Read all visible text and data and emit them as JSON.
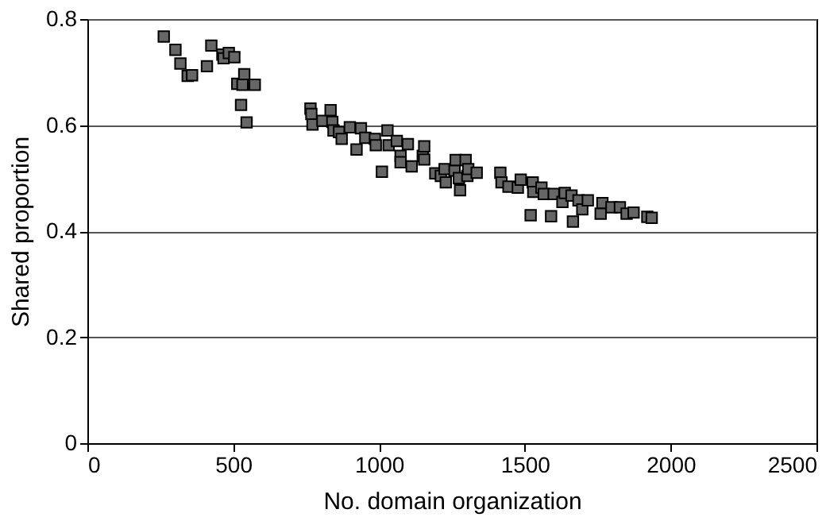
{
  "chart_data": {
    "type": "scatter",
    "xlabel": "No. domain organization",
    "ylabel": "Shared proportion",
    "xlim": [
      0,
      2500
    ],
    "xticks": [
      0,
      500,
      1000,
      1500,
      2000,
      2500
    ],
    "ylim": [
      0,
      0.8
    ],
    "yticks": [
      0,
      0.2,
      0.4,
      0.6,
      0.8
    ],
    "grid": "y",
    "marker": "square",
    "legend": false,
    "series": [
      {
        "color": "#666666",
        "x": [
          262,
          302,
          319,
          344,
          359,
          410,
          425,
          463,
          467,
          485,
          504,
          514,
          538,
          532,
          574,
          527,
          546,
          765,
          768,
          772,
          806,
          834,
          840,
          844,
          863,
          872,
          900,
          923,
          938,
          953,
          986,
          989,
          1010,
          1029,
          1033,
          1061,
          1074,
          1074,
          1099,
          1112,
          1150,
          1155,
          1155,
          1193,
          1212,
          1225,
          1229,
          1259,
          1263,
          1274,
          1278,
          1297,
          1303,
          1306,
          1335,
          1416,
          1420,
          1444,
          1476,
          1486,
          1520,
          1527,
          1529,
          1557,
          1565,
          1590,
          1599,
          1629,
          1637,
          1660,
          1665,
          1684,
          1697,
          1716,
          1760,
          1766,
          1797,
          1826,
          1849,
          1873,
          1920,
          1935
        ],
        "values": [
          0.767,
          0.742,
          0.716,
          0.693,
          0.694,
          0.711,
          0.75,
          0.733,
          0.726,
          0.736,
          0.728,
          0.678,
          0.696,
          0.676,
          0.676,
          0.638,
          0.605,
          0.631,
          0.621,
          0.601,
          0.608,
          0.628,
          0.606,
          0.59,
          0.587,
          0.574,
          0.596,
          0.554,
          0.594,
          0.576,
          0.574,
          0.562,
          0.512,
          0.59,
          0.562,
          0.57,
          0.542,
          0.53,
          0.564,
          0.522,
          0.542,
          0.56,
          0.535,
          0.509,
          0.504,
          0.517,
          0.492,
          0.514,
          0.534,
          0.5,
          0.477,
          0.534,
          0.504,
          0.517,
          0.51,
          0.51,
          0.492,
          0.484,
          0.482,
          0.497,
          0.43,
          0.492,
          0.474,
          0.482,
          0.47,
          0.428,
          0.47,
          0.455,
          0.472,
          0.467,
          0.418,
          0.458,
          0.441,
          0.458,
          0.433,
          0.453,
          0.445,
          0.445,
          0.433,
          0.435,
          0.427,
          0.425
        ]
      }
    ]
  }
}
